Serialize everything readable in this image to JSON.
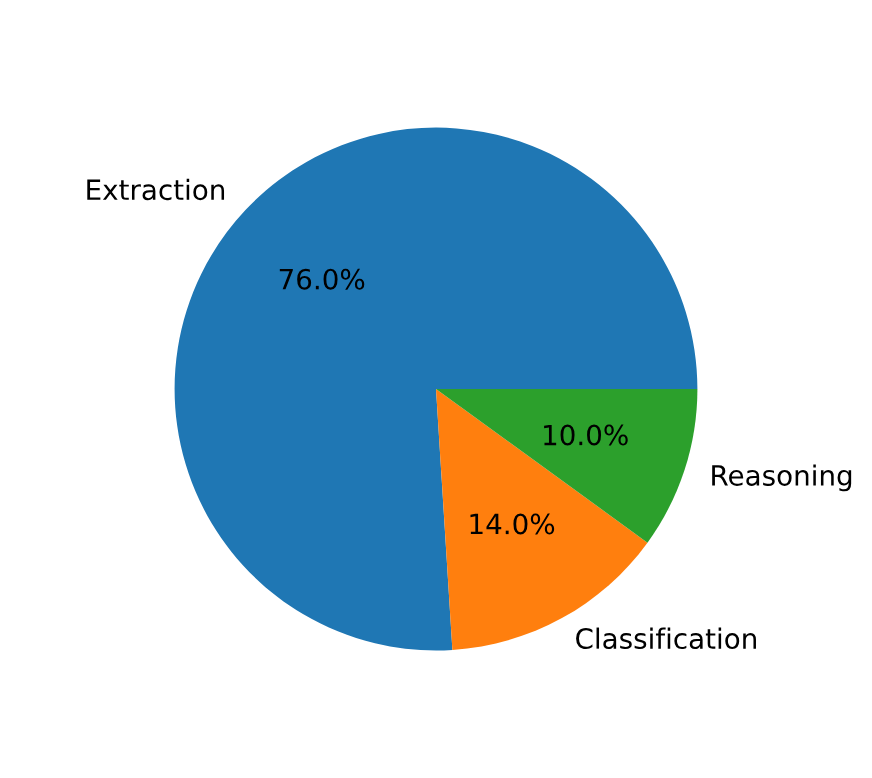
{
  "chart_data": {
    "type": "pie",
    "categories": [
      "Extraction",
      "Classification",
      "Reasoning"
    ],
    "values": [
      76,
      14,
      10
    ],
    "colors": [
      "#1f77b4",
      "#ff7f0e",
      "#2ca02c"
    ],
    "value_labels": [
      "76.0%",
      "14.0%",
      "10.0%"
    ]
  }
}
